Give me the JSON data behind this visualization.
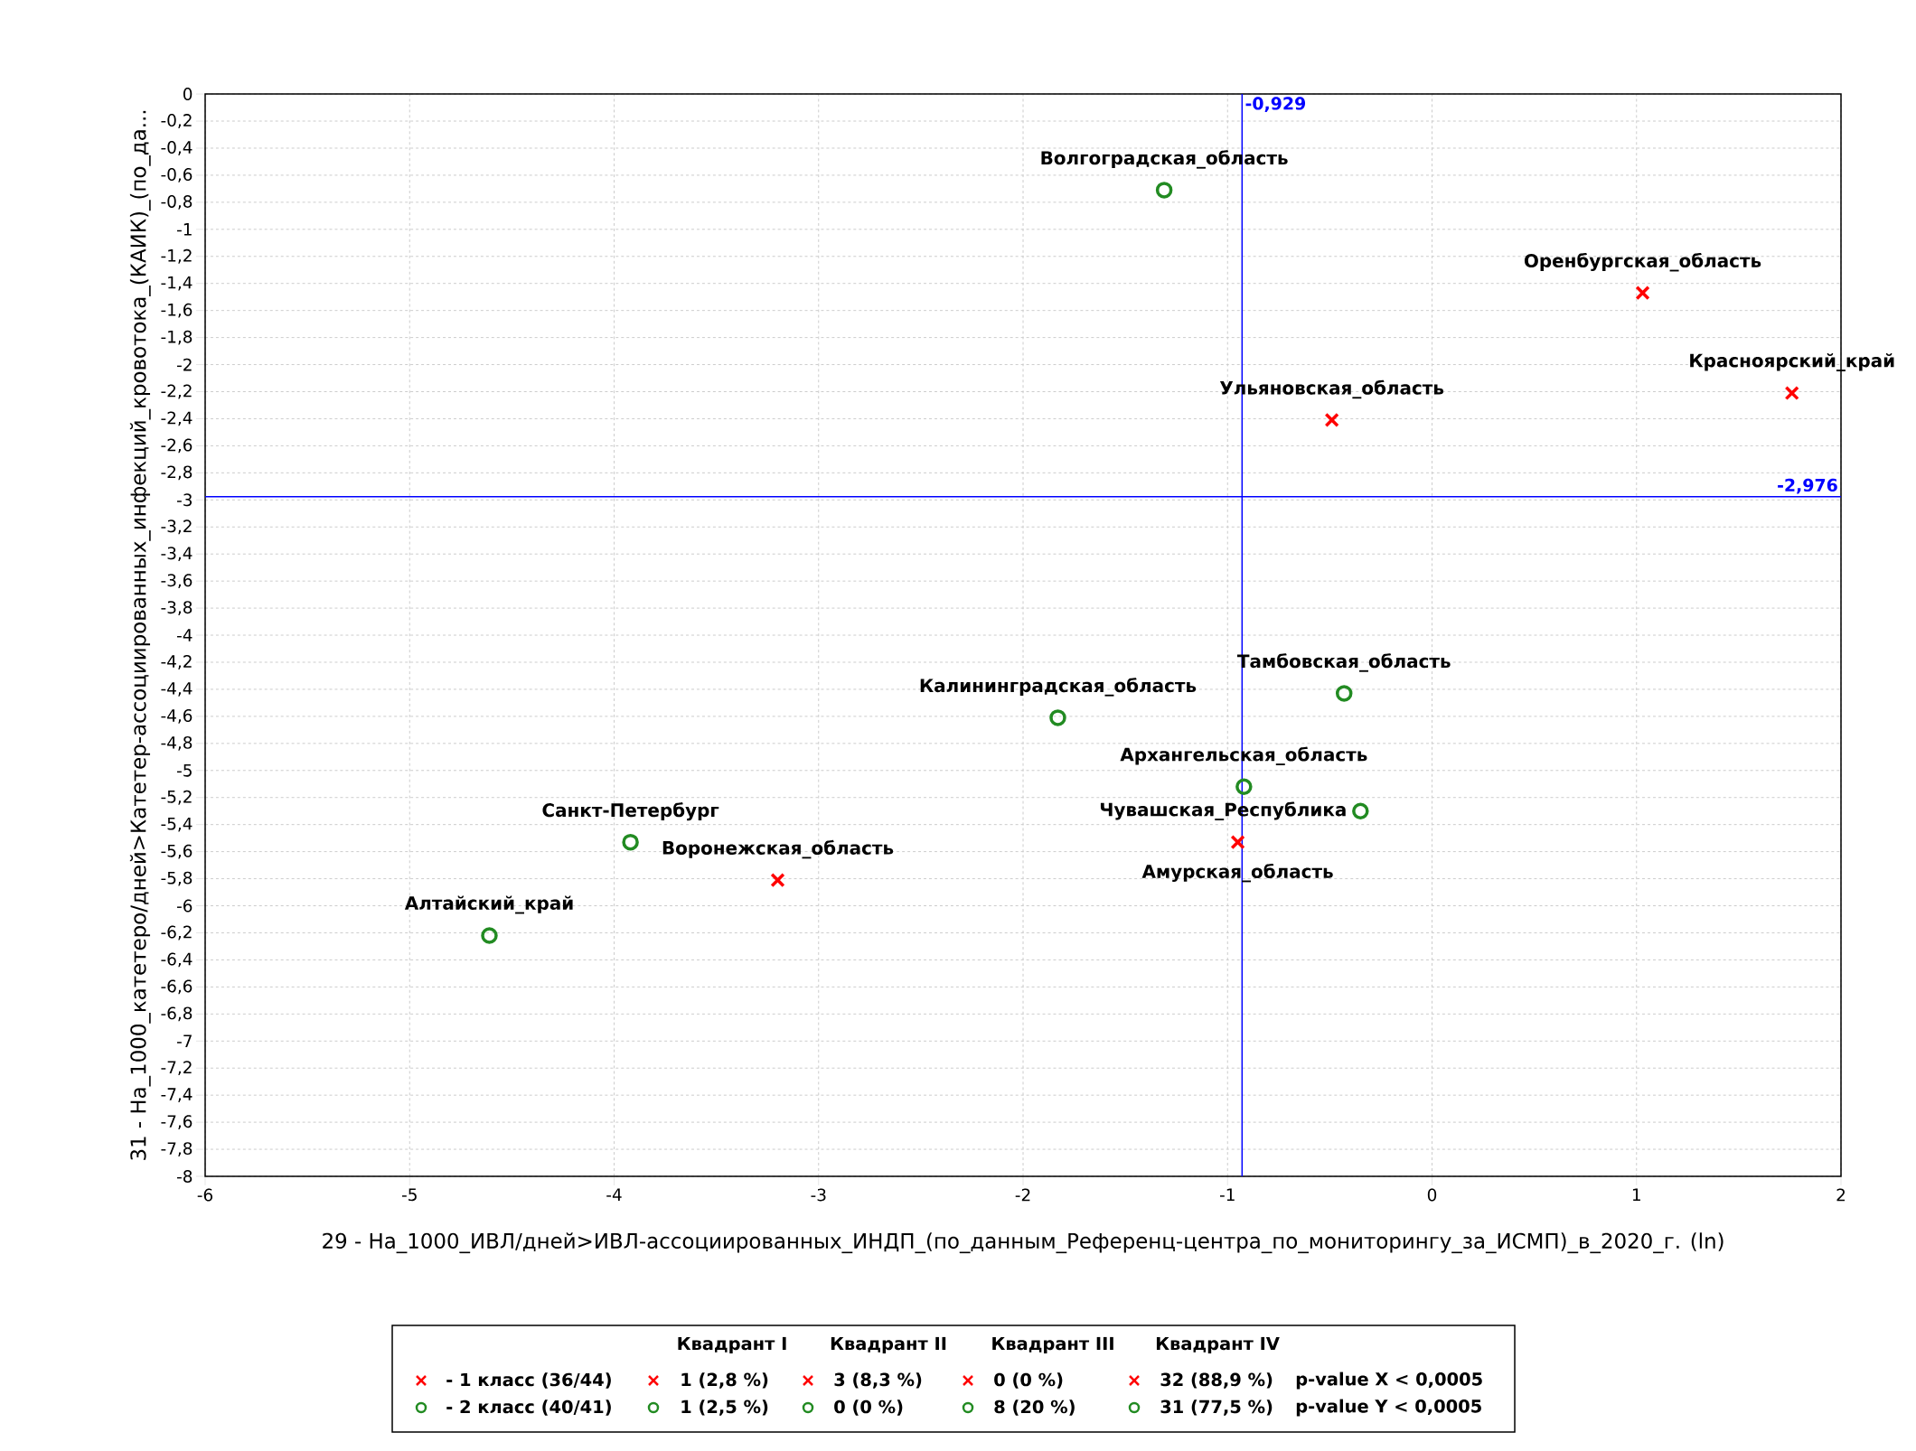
{
  "chart_data": {
    "type": "scatter",
    "xlabel": "29 - На_1000_ИВЛ/дней>ИВЛ-ассоциированных_ИНДП_(по_данным_Референц-центра_по_мониторингу_за_ИСМП)_в_2020_г.  (ln)",
    "ylabel": "31 - На_1000_катетеро/дней>Катетер-ассоциированных_инфекций_кровотока_(КАИК)_(по_да...",
    "xlim": [
      -6,
      2
    ],
    "xticks": [
      -6,
      -5,
      -4,
      -3,
      -2,
      -1,
      0,
      1,
      2
    ],
    "ylim": [
      -8,
      0
    ],
    "yticks": [
      0,
      {
        "value": -0.2,
        "label": "-0,2"
      },
      {
        "value": -0.4,
        "label": "-0,4"
      },
      {
        "value": -0.6,
        "label": "-0,6"
      },
      {
        "value": -0.8,
        "label": "-0,8"
      },
      -1,
      {
        "value": -1.2,
        "label": "-1,2"
      },
      {
        "value": -1.4,
        "label": "-1,4"
      },
      {
        "value": -1.6,
        "label": "-1,6"
      },
      {
        "value": -1.8,
        "label": "-1,8"
      },
      -2,
      {
        "value": -2.2,
        "label": "-2,2"
      },
      {
        "value": -2.4,
        "label": "-2,4"
      },
      {
        "value": -2.6,
        "label": "-2,6"
      },
      {
        "value": -2.8,
        "label": "-2,8"
      },
      -3,
      {
        "value": -3.2,
        "label": "-3,2"
      },
      {
        "value": -3.4,
        "label": "-3,4"
      },
      {
        "value": -3.6,
        "label": "-3,6"
      },
      {
        "value": -3.8,
        "label": "-3,8"
      },
      -4,
      {
        "value": -4.2,
        "label": "-4,2"
      },
      {
        "value": -4.4,
        "label": "-4,4"
      },
      {
        "value": -4.6,
        "label": "-4,6"
      },
      {
        "value": -4.8,
        "label": "-4,8"
      },
      -5,
      {
        "value": -5.2,
        "label": "-5,2"
      },
      {
        "value": -5.4,
        "label": "-5,4"
      },
      {
        "value": -5.6,
        "label": "-5,6"
      },
      {
        "value": -5.8,
        "label": "-5,8"
      },
      -6,
      {
        "value": -6.2,
        "label": "-6,2"
      },
      {
        "value": -6.4,
        "label": "-6,4"
      },
      {
        "value": -6.6,
        "label": "-6,6"
      },
      {
        "value": -6.8,
        "label": "-6,8"
      },
      -7,
      {
        "value": -7.2,
        "label": "-7,2"
      },
      {
        "value": -7.4,
        "label": "-7,4"
      },
      {
        "value": -7.6,
        "label": "-7,6"
      },
      {
        "value": -7.8,
        "label": "-7,8"
      },
      -8
    ],
    "grid": true,
    "legend": "bottom",
    "series": [
      {
        "name": "- 1 класс (36/44)",
        "color": "#ff0000",
        "marker": "cross",
        "x": [
          1.03,
          1.76,
          -0.49,
          -3.2,
          -0.95
        ],
        "values": [
          -1.47,
          -2.21,
          -2.41,
          -5.81,
          -5.53
        ]
      },
      {
        "name": "- 2 класс (40/41)",
        "color": "#228b22",
        "marker": "circle",
        "x": [
          -1.31,
          -1.83,
          -0.43,
          -0.92,
          -0.35,
          -3.92,
          -4.61
        ],
        "values": [
          -0.71,
          -4.61,
          -4.43,
          -5.12,
          -5.3,
          -5.53,
          -6.22
        ]
      }
    ],
    "ref_lines": [
      {
        "axis": "x",
        "value": -0.929,
        "label": "-0,929",
        "color": "#0000ff"
      },
      {
        "axis": "y",
        "value": -2.976,
        "label": "-2,976",
        "color": "#0000ff"
      }
    ],
    "annotations": [
      {
        "text": "Волгоградская_область",
        "x": -1.31,
        "y": -0.71
      },
      {
        "text": "Оренбургская_область",
        "x": 1.03,
        "y": -1.47
      },
      {
        "text": "Красноярский_край",
        "x": 1.76,
        "y": -2.21
      },
      {
        "text": "Ульяновская_область",
        "x": -0.49,
        "y": -2.41
      },
      {
        "text": "Тамбовская_область",
        "x": -0.43,
        "y": -4.43
      },
      {
        "text": "Калининградская_область",
        "x": -1.83,
        "y": -4.61
      },
      {
        "text": "Архангельская_область",
        "x": -0.92,
        "y": -5.12
      },
      {
        "text": "Чувашская_Республика",
        "x": -0.35,
        "y": -5.3
      },
      {
        "text": "Амурская_область",
        "x": -0.95,
        "y": -5.53
      },
      {
        "text": "Санкт-Петербург",
        "x": -3.92,
        "y": -5.53
      },
      {
        "text": "Воронежская_область",
        "x": -3.2,
        "y": -5.81
      },
      {
        "text": "Алтайский_край",
        "x": -4.61,
        "y": -6.22
      },
      "Квадрант I",
      "Квадрант II",
      "Квадрант III",
      "Квадрант IV",
      "1 (2,8 %)",
      "3 (8,3 %)",
      "0 (0 %)",
      "32 (88,9 %)",
      "p-value X < 0,0005",
      "1 (2,5 %)",
      "0 (0 %)",
      "8 (20 %)",
      "31 (77,5 %)",
      "p-value Y < 0,0005"
    ]
  }
}
